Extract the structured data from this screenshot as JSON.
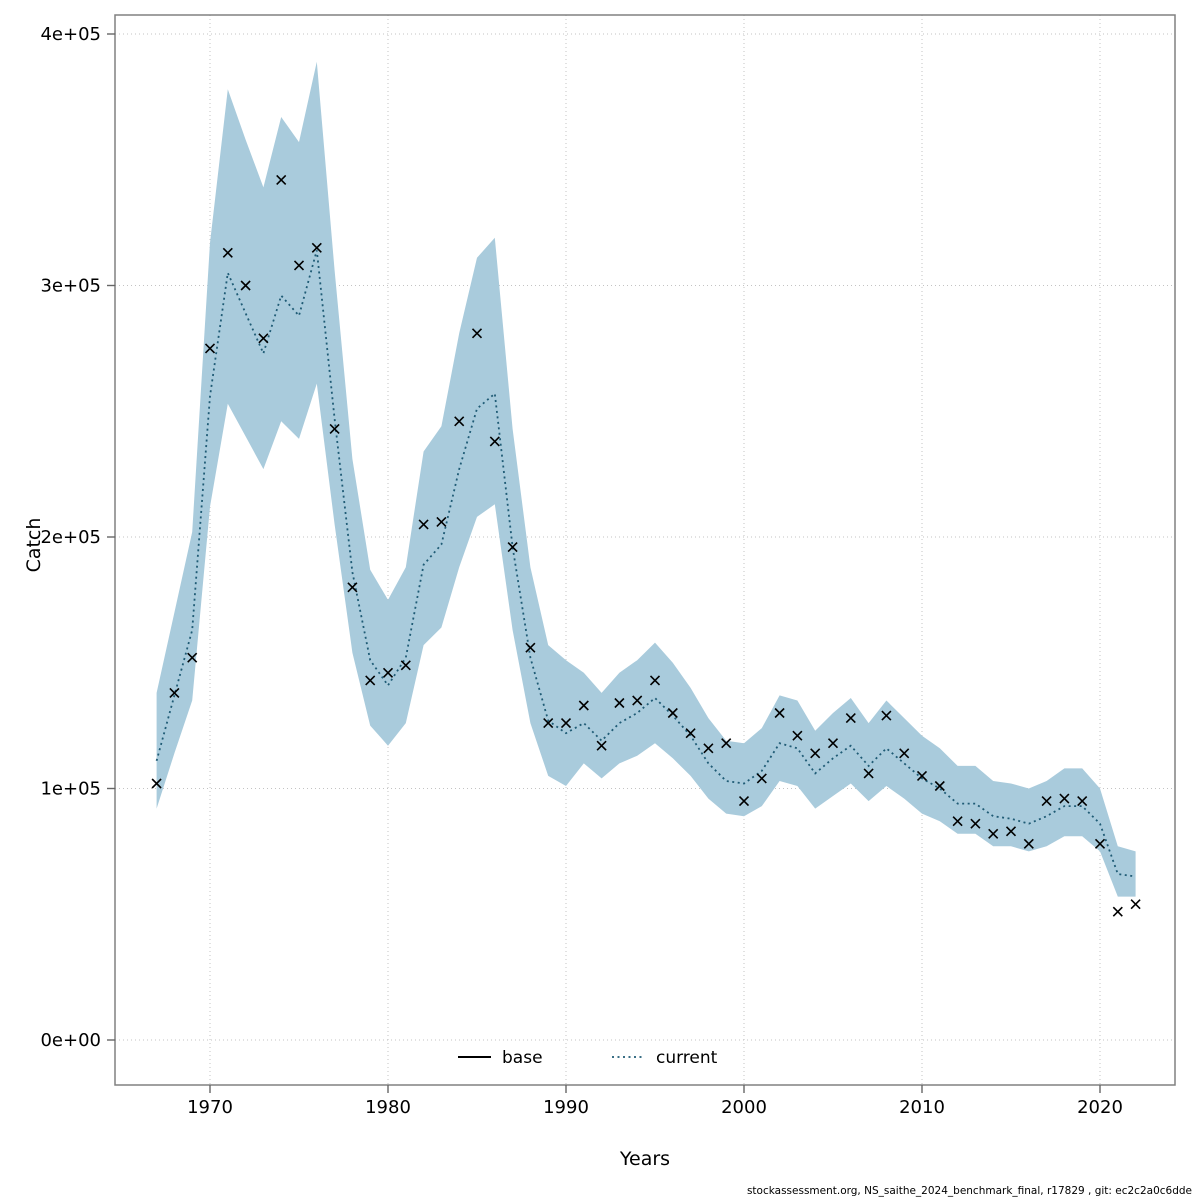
{
  "footer": {
    "text": "stockassessment.org, NS_saithe_2024_benchmark_final, r17829 , git: ec2c2a0c6dde"
  },
  "chart_data": {
    "type": "line",
    "title": "",
    "xlabel": "Years",
    "ylabel": "Catch",
    "grid": true,
    "legend": [
      "base",
      "current"
    ],
    "legend_position": "bottom-center",
    "xlim": [
      1964.7,
      2024.2
    ],
    "ylim": [
      -18000,
      408000
    ],
    "x_ticks": [
      1970,
      1980,
      1990,
      2000,
      2010,
      2020
    ],
    "y_ticks": [
      0,
      100000,
      200000,
      300000,
      400000
    ],
    "y_tick_labels": [
      "0e+00",
      "1e+05",
      "2e+05",
      "3e+05",
      "4e+05"
    ],
    "colors": {
      "band": "#a9cbdc",
      "current_line": "#1f5b75",
      "base_line": "#000000",
      "marker": "#000000",
      "grid": "#c3c3c3",
      "box": "#808080"
    },
    "years": [
      1967,
      1968,
      1969,
      1970,
      1971,
      1972,
      1973,
      1974,
      1975,
      1976,
      1977,
      1978,
      1979,
      1980,
      1981,
      1982,
      1983,
      1984,
      1985,
      1986,
      1987,
      1988,
      1989,
      1990,
      1991,
      1992,
      1993,
      1994,
      1995,
      1996,
      1997,
      1998,
      1999,
      2000,
      2001,
      2002,
      2003,
      2004,
      2005,
      2006,
      2007,
      2008,
      2009,
      2010,
      2011,
      2012,
      2013,
      2014,
      2015,
      2016,
      2017,
      2018,
      2019,
      2020,
      2021,
      2022
    ],
    "observed": [
      102000,
      138000,
      152000,
      275000,
      313000,
      300000,
      279000,
      342000,
      308000,
      315000,
      243000,
      180000,
      143000,
      146000,
      149000,
      205000,
      206000,
      246000,
      281000,
      238000,
      196000,
      156000,
      126000,
      126000,
      133000,
      117000,
      134000,
      135000,
      143000,
      130000,
      122000,
      116000,
      118000,
      95000,
      104000,
      130000,
      121000,
      114000,
      118000,
      128000,
      106000,
      129000,
      114000,
      105000,
      101000,
      87000,
      86000,
      82000,
      83000,
      78000,
      95000,
      96000,
      95000,
      78000,
      51000,
      54000
    ],
    "series": [
      {
        "name": "current",
        "style": "dotted",
        "values": [
          111000,
          137000,
          163000,
          256000,
          305000,
          289000,
          273000,
          296000,
          288000,
          314000,
          247000,
          186000,
          151000,
          141000,
          152000,
          189000,
          197000,
          227000,
          251000,
          257000,
          196000,
          152000,
          127000,
          122000,
          126000,
          119000,
          126000,
          130000,
          136000,
          129000,
          121000,
          110000,
          103000,
          102000,
          107000,
          118000,
          116000,
          106000,
          112000,
          117000,
          109000,
          116000,
          110000,
          104000,
          100000,
          94000,
          94000,
          89000,
          88000,
          86000,
          89000,
          93000,
          93000,
          86000,
          66000,
          65000
        ]
      }
    ],
    "band_lower": [
      92000,
      114000,
      135000,
      212000,
      253000,
      240000,
      227000,
      246000,
      239000,
      261000,
      205000,
      154000,
      125000,
      117000,
      126000,
      157000,
      164000,
      188000,
      208000,
      213000,
      163000,
      126000,
      105000,
      101000,
      110000,
      104000,
      110000,
      113000,
      118000,
      112000,
      105000,
      96000,
      90000,
      89000,
      93000,
      103000,
      101000,
      92000,
      97000,
      102000,
      95000,
      101000,
      96000,
      90000,
      87000,
      82000,
      82000,
      77000,
      77000,
      75000,
      77000,
      81000,
      81000,
      75000,
      57000,
      57000
    ],
    "band_upper": [
      138000,
      170000,
      202000,
      317000,
      378000,
      358000,
      339000,
      367000,
      357000,
      389000,
      306000,
      231000,
      187000,
      175000,
      188000,
      234000,
      244000,
      281000,
      311000,
      319000,
      243000,
      188000,
      157000,
      151000,
      146000,
      138000,
      146000,
      151000,
      158000,
      150000,
      140000,
      128000,
      119000,
      118000,
      124000,
      137000,
      135000,
      123000,
      130000,
      136000,
      126000,
      135000,
      128000,
      121000,
      116000,
      109000,
      109000,
      103000,
      102000,
      100000,
      103000,
      108000,
      108000,
      100000,
      77000,
      75000
    ]
  }
}
